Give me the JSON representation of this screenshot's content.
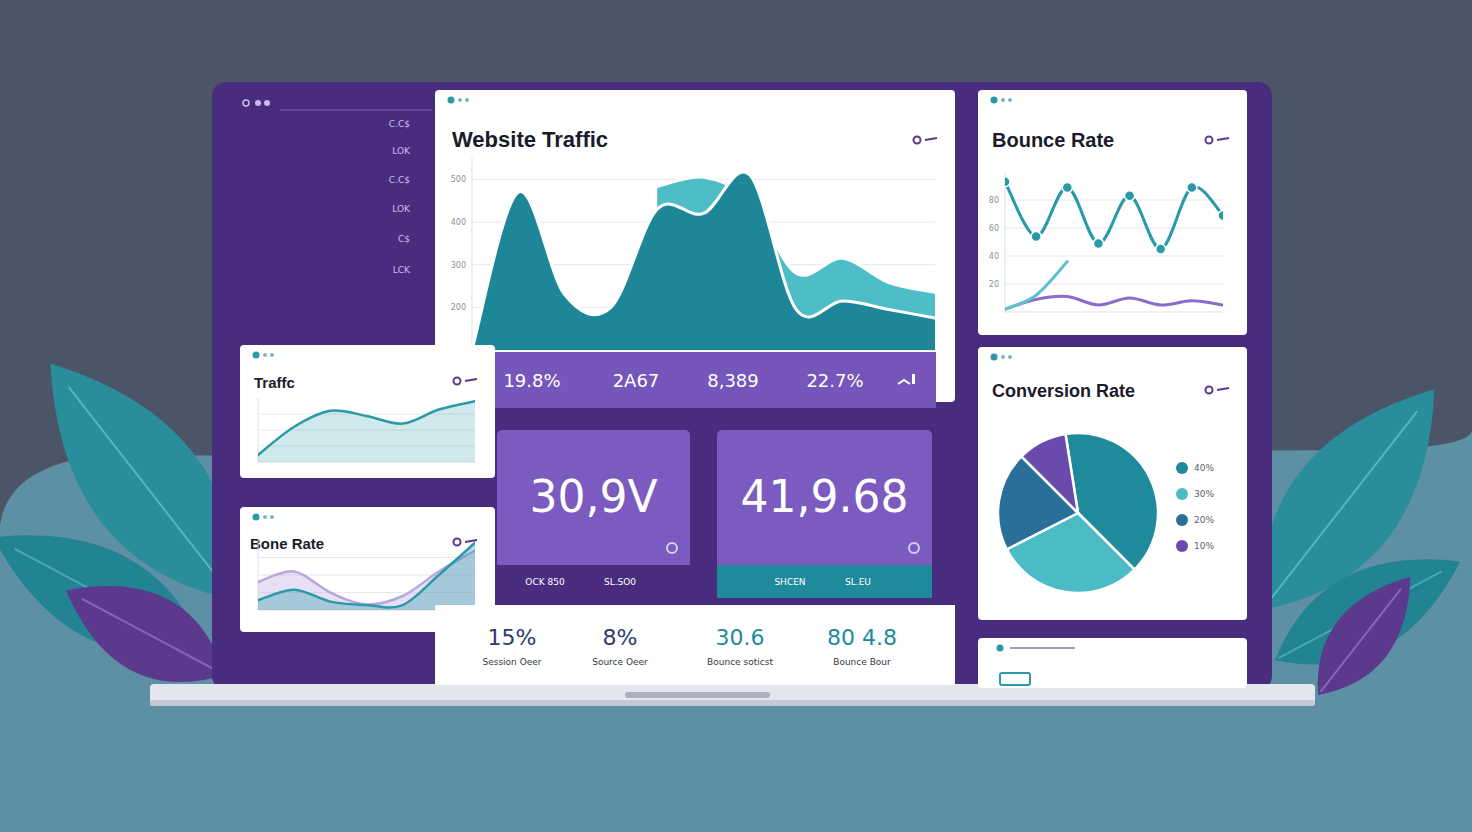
{
  "sidebar": {
    "labels": [
      "C.C$",
      "LOK",
      "C.C$",
      "LOK",
      "C$",
      "LCK"
    ]
  },
  "chart_data": [
    {
      "type": "area",
      "title": "Website Traffic",
      "x": [
        0,
        1,
        2,
        3,
        4,
        5,
        6,
        7,
        8,
        9,
        10
      ],
      "xlim": [
        0,
        10
      ],
      "ylim": [
        100,
        550
      ],
      "yticks": [
        200,
        300,
        400,
        500
      ],
      "grid": true,
      "tick_labels": "y",
      "series": [
        {
          "color": "#4dbdc7",
          "values": [
            null,
            null,
            null,
            null,
            483,
            505,
            450,
            280,
            315,
            258,
            235
          ]
        },
        {
          "color": "#1d8798",
          "values": [
            100,
            470,
            230,
            200,
            430,
            420,
            510,
            195,
            215,
            195,
            175
          ]
        }
      ]
    },
    {
      "type": "line",
      "title": "Bounce Rate",
      "x": [
        0,
        1,
        2,
        3,
        4,
        5,
        6,
        7
      ],
      "xlim": [
        0,
        7
      ],
      "ylim": [
        0,
        100
      ],
      "yticks": [
        20,
        40,
        60,
        80
      ],
      "grid": true,
      "tick_labels": "y",
      "series": [
        {
          "color": "#2a9aa8",
          "marker": "circle",
          "values": [
            93,
            54,
            89,
            49,
            83,
            45,
            89,
            69
          ]
        },
        {
          "color": "#8c6cc8",
          "values": [
            2,
            9,
            11,
            5,
            10,
            5,
            8,
            5
          ]
        },
        {
          "color": "#5cc3cc",
          "values": [
            2,
            12,
            36,
            null,
            null,
            null,
            null,
            null
          ]
        }
      ]
    },
    {
      "type": "pie",
      "title": "Conversion Rate",
      "categories": [
        "40%",
        "30%",
        "20%",
        "10%"
      ],
      "values": [
        40,
        30,
        20,
        10
      ],
      "colors": [
        "#1f8a9c",
        "#4bbcc6",
        "#2a6f99",
        "#6a4bab"
      ],
      "legend": "right"
    },
    {
      "type": "area",
      "title": "Traffc",
      "x": [
        0,
        1,
        2,
        3,
        4,
        5,
        6
      ],
      "xlim": [
        0,
        6
      ],
      "ylim": [
        0,
        100
      ],
      "yticks": [
        25,
        50,
        75
      ],
      "grid": true,
      "tick_labels": false,
      "series": [
        {
          "color": "#2a9aa8",
          "values": [
            11,
            55,
            80,
            72,
            60,
            82,
            95
          ]
        }
      ]
    },
    {
      "type": "area",
      "title": "Bone Rate",
      "x": [
        0,
        1,
        2,
        3,
        4,
        5,
        6
      ],
      "xlim": [
        0,
        6
      ],
      "ylim": [
        0,
        100
      ],
      "yticks": [
        25,
        50,
        75
      ],
      "grid": true,
      "tick_labels": false,
      "series": [
        {
          "color": "#b9a6e0",
          "values": [
            40,
            55,
            25,
            8,
            20,
            55,
            85
          ]
        },
        {
          "color": "#2a9aa8",
          "values": [
            14,
            29,
            12,
            7,
            7,
            50,
            96
          ]
        }
      ]
    }
  ],
  "kpi_strip": [
    "19.8%",
    "2A67",
    "8,389",
    "22.7%"
  ],
  "tiles": [
    {
      "value": "30,9V",
      "sub": [
        "OCK 850",
        "SL.SO0"
      ]
    },
    {
      "value": "41,9.68",
      "sub": [
        "SHCEN",
        "SL.EU"
      ]
    }
  ],
  "stats": [
    {
      "value": "15%",
      "label": "Session Oeer"
    },
    {
      "value": "8%",
      "label": "Source Oeer"
    },
    {
      "value": "30.6",
      "label": "Bounce soticst"
    },
    {
      "value": "80 4.8",
      "label": "Bounce Bour"
    }
  ]
}
